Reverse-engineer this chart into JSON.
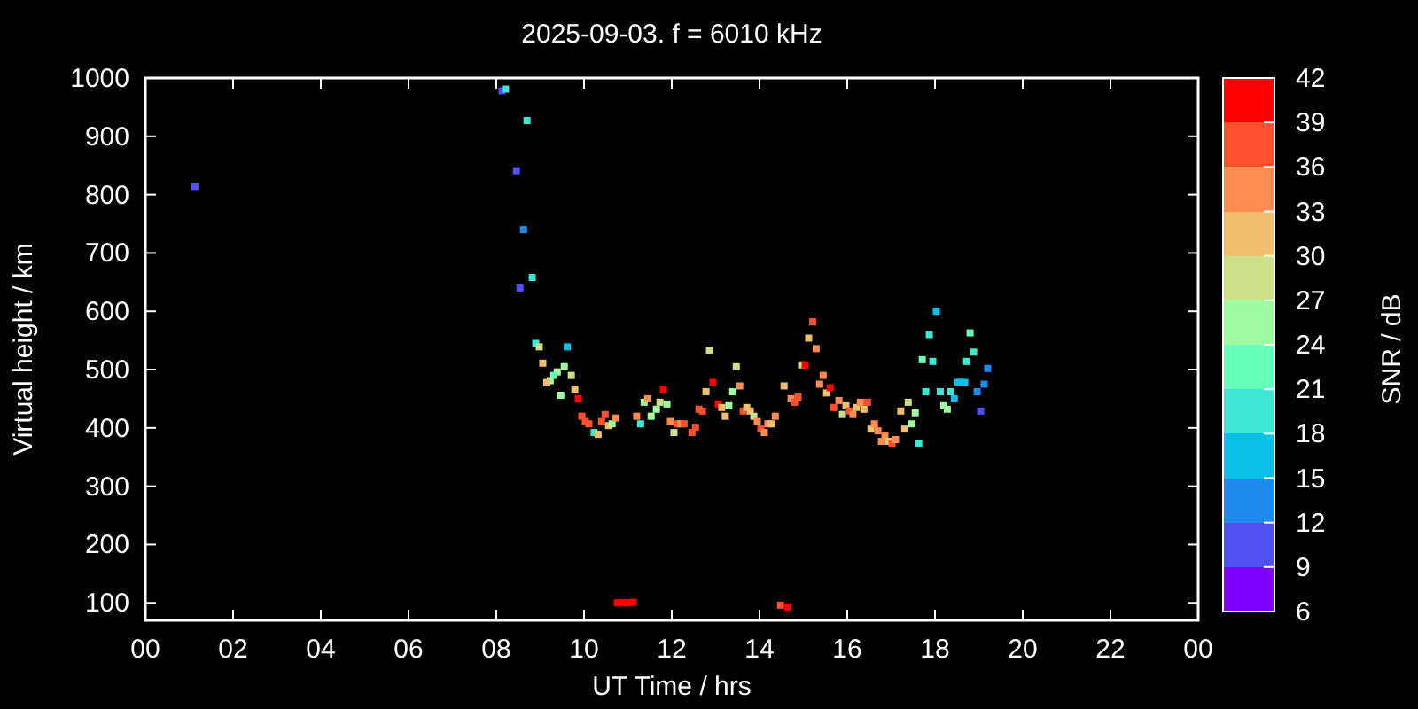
{
  "chart_data": {
    "type": "scatter",
    "title": "2025-09-03. f = 6010 kHz",
    "xlabel": "UT Time / hrs",
    "ylabel": "Virtual height / km",
    "clabel": "SNR / dB",
    "marker": "square",
    "grid": false,
    "xlim": [
      0,
      24
    ],
    "xticks": [
      {
        "value": 0,
        "label": "00"
      },
      {
        "value": 2,
        "label": "02"
      },
      {
        "value": 4,
        "label": "04"
      },
      {
        "value": 6,
        "label": "06"
      },
      {
        "value": 8,
        "label": "08"
      },
      10,
      12,
      14,
      16,
      18,
      20,
      22,
      {
        "value": 24,
        "label": "00"
      }
    ],
    "ylim": [
      70,
      1000
    ],
    "yticks": [
      100,
      200,
      300,
      400,
      500,
      600,
      700,
      800,
      900,
      1000
    ],
    "clim": [
      6,
      42
    ],
    "cticks": [
      6,
      9,
      12,
      15,
      18,
      21,
      24,
      27,
      30,
      33,
      36,
      39,
      42
    ],
    "x": [
      1.13,
      8.13,
      8.21,
      8.7,
      8.46,
      8.62,
      8.82,
      8.54,
      8.9,
      8.98,
      9.62,
      9.06,
      9.55,
      9.39,
      9.31,
      9.71,
      9.23,
      9.15,
      9.47,
      9.79,
      9.87,
      9.95,
      10.03,
      10.11,
      10.23,
      10.32,
      10.4,
      10.48,
      10.56,
      10.64,
      10.72,
      10.76,
      10.88,
      11.0,
      11.12,
      11.2,
      11.29,
      11.37,
      11.45,
      11.53,
      11.65,
      11.73,
      11.81,
      11.89,
      11.97,
      12.05,
      12.12,
      12.2,
      12.28,
      12.46,
      12.54,
      12.62,
      12.7,
      12.78,
      12.86,
      12.94,
      13.06,
      13.14,
      13.22,
      13.3,
      13.39,
      13.47,
      13.55,
      13.63,
      13.71,
      13.79,
      13.87,
      13.95,
      14.03,
      14.11,
      14.19,
      14.27,
      14.36,
      14.48,
      14.64,
      14.56,
      14.72,
      14.8,
      14.88,
      14.96,
      15.04,
      15.12,
      15.21,
      15.29,
      15.37,
      15.45,
      15.53,
      15.61,
      15.69,
      15.81,
      15.89,
      15.97,
      16.05,
      16.13,
      16.21,
      16.3,
      16.38,
      16.46,
      16.54,
      16.62,
      16.7,
      16.78,
      16.86,
      16.94,
      17.02,
      17.1,
      17.22,
      17.31,
      17.39,
      17.47,
      17.55,
      17.63,
      17.71,
      17.79,
      17.87,
      17.95,
      18.03,
      18.12,
      18.2,
      18.28,
      18.36,
      18.44,
      18.52,
      18.6,
      18.68,
      18.72,
      18.8,
      18.88,
      19.2,
      19.12,
      18.96,
      19.04
    ],
    "values": [
      814,
      978,
      981,
      927,
      841,
      740,
      658,
      640,
      545,
      539,
      539,
      511,
      505,
      496,
      490,
      490,
      481,
      478,
      456,
      466,
      450,
      420,
      411,
      407,
      392,
      389,
      411,
      423,
      404,
      407,
      417,
      100,
      100,
      100,
      101,
      420,
      407,
      444,
      450,
      420,
      432,
      444,
      466,
      441,
      411,
      392,
      407,
      407,
      407,
      392,
      401,
      432,
      429,
      462,
      533,
      478,
      441,
      435,
      420,
      438,
      462,
      505,
      472,
      429,
      435,
      429,
      420,
      411,
      398,
      392,
      407,
      407,
      420,
      96,
      93,
      472,
      450,
      444,
      453,
      508,
      508,
      554,
      582,
      536,
      475,
      490,
      460,
      469,
      435,
      447,
      423,
      438,
      429,
      423,
      435,
      444,
      432,
      444,
      398,
      407,
      395,
      377,
      386,
      377,
      374,
      380,
      429,
      398,
      444,
      407,
      426,
      374,
      517,
      462,
      560,
      514,
      600,
      462,
      438,
      432,
      462,
      450,
      478,
      478,
      478,
      514,
      563,
      530,
      502,
      475,
      462,
      429
    ],
    "cvalues": [
      10,
      10,
      20,
      20,
      10,
      13,
      20,
      10,
      20,
      28,
      17,
      31,
      25,
      25,
      22,
      28,
      25,
      31,
      25,
      31,
      40,
      37,
      37,
      37,
      20,
      31,
      37,
      37,
      31,
      25,
      34,
      40,
      40,
      40,
      40,
      34,
      20,
      25,
      34,
      25,
      25,
      28,
      40,
      25,
      34,
      28,
      37,
      33,
      37,
      37,
      37,
      37,
      37,
      31,
      28,
      40,
      40,
      31,
      31,
      25,
      25,
      28,
      34,
      37,
      31,
      31,
      28,
      34,
      37,
      34,
      34,
      31,
      34,
      37,
      40,
      31,
      34,
      37,
      37,
      28,
      40,
      31,
      37,
      34,
      34,
      34,
      31,
      40,
      37,
      34,
      28,
      31,
      37,
      34,
      31,
      34,
      31,
      37,
      31,
      34,
      34,
      34,
      34,
      31,
      37,
      34,
      31,
      31,
      28,
      25,
      25,
      20,
      22,
      20,
      20,
      20,
      17,
      20,
      25,
      25,
      20,
      17,
      17,
      17,
      17,
      20,
      22,
      20,
      13,
      13,
      13,
      10
    ]
  }
}
